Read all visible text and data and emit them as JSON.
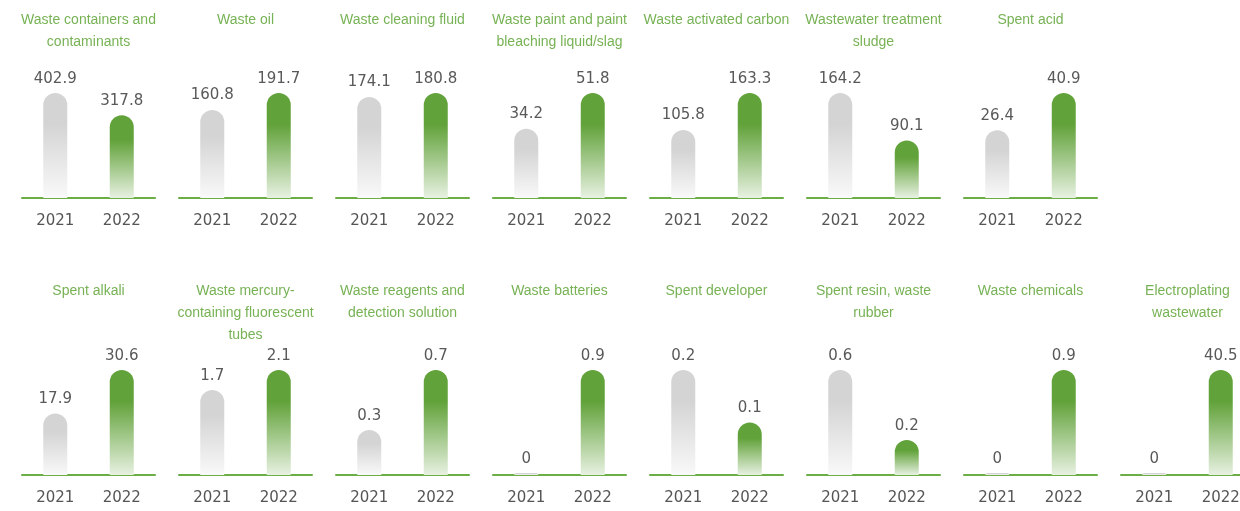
{
  "chart_data": [
    {
      "type": "bar",
      "title": "Waste containers and contaminants",
      "categories": [
        "2021",
        "2022"
      ],
      "values": [
        402.9,
        317.8
      ],
      "colors": [
        "#d4d4d4",
        "#62a23a"
      ],
      "data_labels": true
    },
    {
      "type": "bar",
      "title": "Waste oil",
      "categories": [
        "2021",
        "2022"
      ],
      "values": [
        160.8,
        191.7
      ],
      "colors": [
        "#d4d4d4",
        "#62a23a"
      ],
      "data_labels": true
    },
    {
      "type": "bar",
      "title": "Waste cleaning fluid",
      "categories": [
        "2021",
        "2022"
      ],
      "values": [
        174.1,
        180.8
      ],
      "colors": [
        "#d4d4d4",
        "#62a23a"
      ],
      "data_labels": true
    },
    {
      "type": "bar",
      "title": "Waste paint and paint bleaching liquid/slag",
      "categories": [
        "2021",
        "2022"
      ],
      "values": [
        34.2,
        51.8
      ],
      "colors": [
        "#d4d4d4",
        "#62a23a"
      ],
      "data_labels": true
    },
    {
      "type": "bar",
      "title": "Waste activated carbon",
      "categories": [
        "2021",
        "2022"
      ],
      "values": [
        105.8,
        163.3
      ],
      "colors": [
        "#d4d4d4",
        "#62a23a"
      ],
      "data_labels": true
    },
    {
      "type": "bar",
      "title": "Wastewater treatment sludge",
      "categories": [
        "2021",
        "2022"
      ],
      "values": [
        164.2,
        90.1
      ],
      "colors": [
        "#d4d4d4",
        "#62a23a"
      ],
      "data_labels": true
    },
    {
      "type": "bar",
      "title": "Spent acid",
      "categories": [
        "2021",
        "2022"
      ],
      "values": [
        26.4,
        40.9
      ],
      "colors": [
        "#d4d4d4",
        "#62a23a"
      ],
      "data_labels": true
    },
    {
      "type": "bar",
      "title": "Spent alkali",
      "categories": [
        "2021",
        "2022"
      ],
      "values": [
        17.9,
        30.6
      ],
      "colors": [
        "#d4d4d4",
        "#62a23a"
      ],
      "data_labels": true
    },
    {
      "type": "bar",
      "title": "Waste mercury-containing fluorescent tubes",
      "categories": [
        "2021",
        "2022"
      ],
      "values": [
        1.7,
        2.1
      ],
      "colors": [
        "#d4d4d4",
        "#62a23a"
      ],
      "data_labels": true
    },
    {
      "type": "bar",
      "title": "Waste reagents and detection solution",
      "categories": [
        "2021",
        "2022"
      ],
      "values": [
        0.3,
        0.7
      ],
      "colors": [
        "#d4d4d4",
        "#62a23a"
      ],
      "data_labels": true
    },
    {
      "type": "bar",
      "title": "Waste batteries",
      "categories": [
        "2021",
        "2022"
      ],
      "values": [
        0,
        0.9
      ],
      "colors": [
        "#d4d4d4",
        "#62a23a"
      ],
      "data_labels": true
    },
    {
      "type": "bar",
      "title": "Spent developer",
      "categories": [
        "2021",
        "2022"
      ],
      "values": [
        0.2,
        0.1
      ],
      "colors": [
        "#d4d4d4",
        "#62a23a"
      ],
      "data_labels": true
    },
    {
      "type": "bar",
      "title": "Spent resin, waste rubber",
      "categories": [
        "2021",
        "2022"
      ],
      "values": [
        0.6,
        0.2
      ],
      "colors": [
        "#d4d4d4",
        "#62a23a"
      ],
      "data_labels": true
    },
    {
      "type": "bar",
      "title": "Waste chemicals",
      "categories": [
        "2021",
        "2022"
      ],
      "values": [
        0,
        0.9
      ],
      "colors": [
        "#d4d4d4",
        "#62a23a"
      ],
      "data_labels": true
    },
    {
      "type": "bar",
      "title": "Electroplating wastewater",
      "categories": [
        "2021",
        "2022"
      ],
      "values": [
        0,
        40.5
      ],
      "colors": [
        "#d4d4d4",
        "#62a23a"
      ],
      "data_labels": true
    }
  ]
}
